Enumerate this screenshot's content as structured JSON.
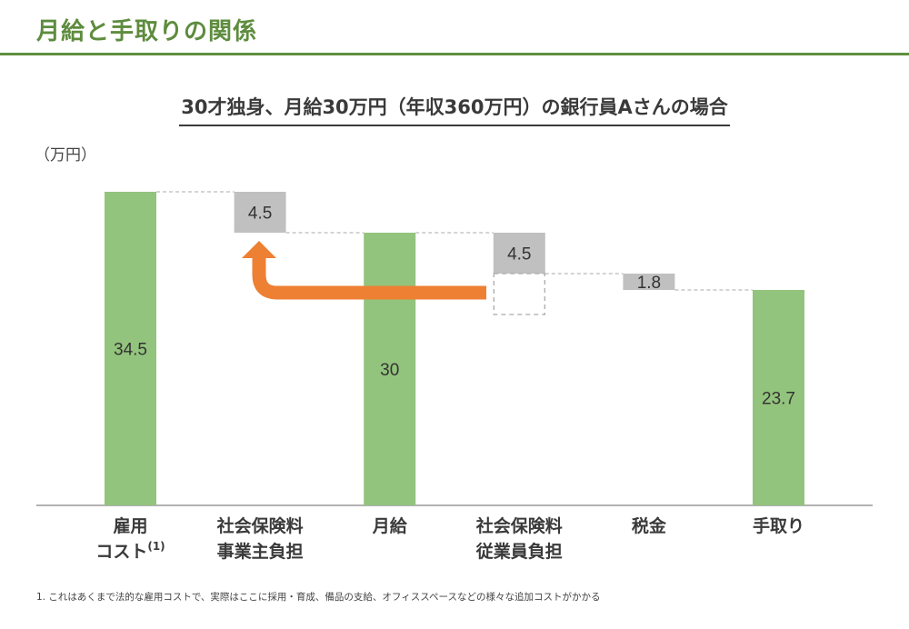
{
  "header": {
    "title": "月給と手取りの関係"
  },
  "footnote": "1. これはあくまで法的な雇用コストで、実際はここに採用・育成、備品の支給、オフィススペースなどの様々な追加コストがかかる",
  "chart_data": {
    "type": "waterfall",
    "title": "30才独身、月給30万円（年収360万円）の銀行員Aさんの場合",
    "ylabel": "（万円）",
    "ylim": [
      0,
      34.5
    ],
    "grid": false,
    "categories": [
      {
        "lines": [
          "雇用",
          "コスト"
        ],
        "sup": "(1)"
      },
      {
        "lines": [
          "社会保険料",
          "事業主負担"
        ]
      },
      {
        "lines": [
          "月給"
        ]
      },
      {
        "lines": [
          "社会保険料",
          "従業員負担"
        ]
      },
      {
        "lines": [
          "税金"
        ]
      },
      {
        "lines": [
          "手取り"
        ]
      }
    ],
    "bars": [
      {
        "kind": "total",
        "value": 34.5,
        "label": "34.5"
      },
      {
        "kind": "decrease",
        "value": 4.5,
        "label": "4.5"
      },
      {
        "kind": "total",
        "value": 30,
        "label": "30"
      },
      {
        "kind": "decrease",
        "value": 4.5,
        "label": "4.5"
      },
      {
        "kind": "decrease",
        "value": 1.8,
        "label": "1.8"
      },
      {
        "kind": "total",
        "value": 23.7,
        "label": "23.7"
      }
    ],
    "annotation": "employee social insurance (dashed box) arrow pointing to employer social insurance",
    "colors": {
      "total": "#93c47d",
      "decrease": "#c0c0c0",
      "arrow": "#ee8033",
      "text": "#333333",
      "axis": "#999999"
    }
  }
}
